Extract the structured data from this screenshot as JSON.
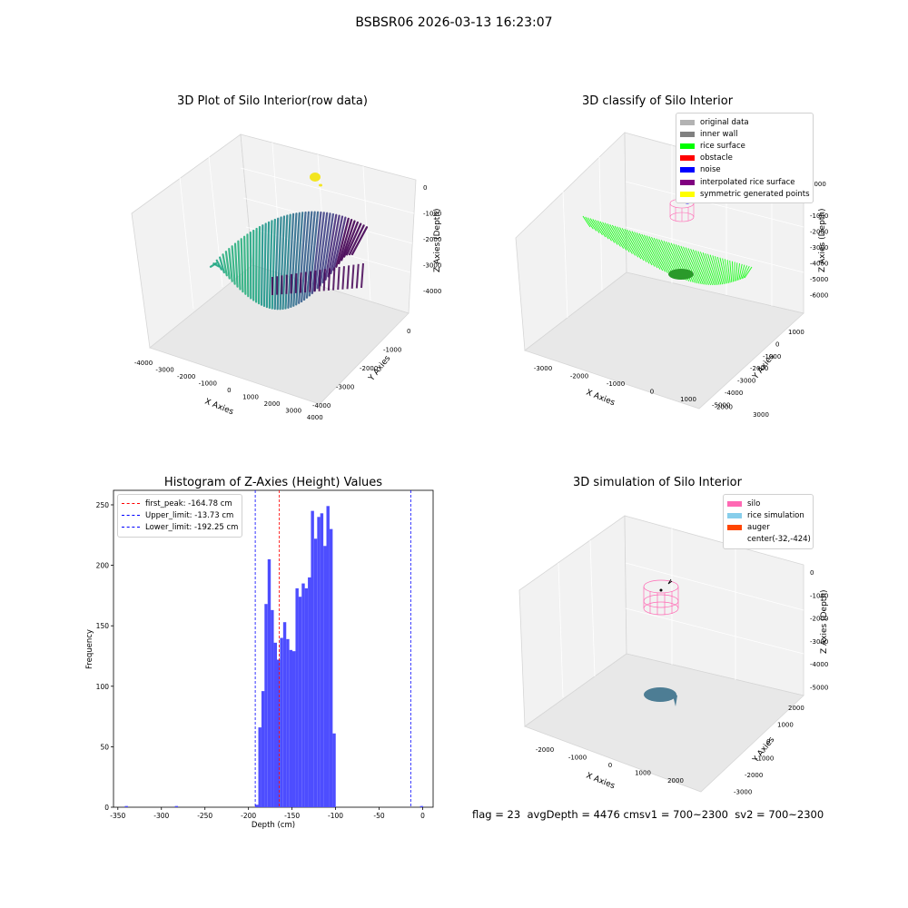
{
  "suptitle": "BSBSR06 2026-03-13 16:23:07",
  "colors": {
    "original": "#b3b3b3",
    "inner_wall": "#808080",
    "rice_surface": "#00ff00",
    "obstacle": "#ff0000",
    "noise": "#0000ff",
    "interpolated": "#800080",
    "symmetric": "#ffff00",
    "silo": "#ff69b4",
    "rice_sim": "#87ceeb",
    "auger": "#ff4500",
    "hist_bar": "#4d4dff"
  },
  "panel1": {
    "title": "3D Plot of Silo Interior(row data)",
    "xlabel": "X Axies",
    "ylabel": "Y Axies",
    "zlabel": "Z Axies (Depth)",
    "xticks": [
      "-4000",
      "-3000",
      "-2000",
      "-1000",
      "0",
      "1000",
      "2000",
      "3000",
      "4000"
    ],
    "yticks": [
      "0",
      "-1000",
      "-2000",
      "-3000",
      "-4000"
    ],
    "zticks": [
      "0",
      "-1000",
      "-2000",
      "-3000",
      "-4000"
    ]
  },
  "panel2": {
    "title": "3D classify of Silo Interior",
    "xlabel": "X Axies",
    "ylabel": "Y Axies",
    "zlabel": "Z Axies (Depth)",
    "xticks": [
      "-3000",
      "-2000",
      "-1000",
      "0",
      "1000",
      "2000",
      "3000"
    ],
    "yticks": [
      "1000",
      "0",
      "-1000",
      "-2000",
      "-3000",
      "-4000",
      "-5000"
    ],
    "zticks": [
      "1000",
      "0",
      "-1000",
      "-2000",
      "-3000",
      "-4000",
      "-5000",
      "-6000"
    ],
    "legend": [
      {
        "label": "original data",
        "color": "#b3b3b3"
      },
      {
        "label": "inner wall",
        "color": "#808080"
      },
      {
        "label": "rice surface",
        "color": "#00ff00"
      },
      {
        "label": "obstacle",
        "color": "#ff0000"
      },
      {
        "label": "noise",
        "color": "#0000ff"
      },
      {
        "label": "interpolated rice surface",
        "color": "#800080"
      },
      {
        "label": "symmetric generated points",
        "color": "#ffff00"
      }
    ]
  },
  "panel3": {
    "title": "3D simulation of Silo Interior",
    "xlabel": "X Axies",
    "ylabel": "Y Axies",
    "zlabel": "Z Axies (Depth)",
    "xticks": [
      "-2000",
      "-1000",
      "0",
      "1000",
      "2000"
    ],
    "yticks": [
      "2000",
      "1000",
      "0",
      "-1000",
      "-2000",
      "-3000"
    ],
    "zticks": [
      "0",
      "-1000",
      "-2000",
      "-3000",
      "-4000",
      "-5000"
    ],
    "legend": [
      {
        "label": "silo",
        "color": "#ff69b4"
      },
      {
        "label": "rice simulation",
        "color": "#87ceeb"
      },
      {
        "label": "auger",
        "color": "#ff4500"
      },
      {
        "label": "center(-32,-424)",
        "color": ""
      }
    ]
  },
  "status_text": "flag = 23  avgDepth = 4476 cmsv1 = 700~2300  sv2 = 700~2300",
  "chart_data": {
    "type": "bar",
    "title": "Histogram of Z-Axies (Height) Values",
    "xlabel": "Depth (cm)",
    "ylabel": "Frequency",
    "xlim": [
      -355,
      12
    ],
    "ylim": [
      0,
      262
    ],
    "xticks": [
      -350,
      -300,
      -250,
      -200,
      -150,
      -100,
      -50,
      0
    ],
    "yticks": [
      0,
      50,
      100,
      150,
      200,
      250
    ],
    "bin_width": 3.56,
    "bins": [
      {
        "x": -342.0,
        "v": 1
      },
      {
        "x": -284.5,
        "v": 1
      },
      {
        "x": -192.25,
        "v": 2
      },
      {
        "x": -188.7,
        "v": 66
      },
      {
        "x": -185.1,
        "v": 96
      },
      {
        "x": -181.6,
        "v": 168
      },
      {
        "x": -178.0,
        "v": 205
      },
      {
        "x": -174.5,
        "v": 163
      },
      {
        "x": -170.9,
        "v": 136
      },
      {
        "x": -167.4,
        "v": 122
      },
      {
        "x": -163.8,
        "v": 140
      },
      {
        "x": -160.2,
        "v": 153
      },
      {
        "x": -156.7,
        "v": 139
      },
      {
        "x": -153.1,
        "v": 130
      },
      {
        "x": -149.6,
        "v": 129
      },
      {
        "x": -146.0,
        "v": 181
      },
      {
        "x": -142.5,
        "v": 174
      },
      {
        "x": -138.9,
        "v": 185
      },
      {
        "x": -135.4,
        "v": 181
      },
      {
        "x": -131.8,
        "v": 190
      },
      {
        "x": -128.3,
        "v": 245
      },
      {
        "x": -124.7,
        "v": 222
      },
      {
        "x": -121.1,
        "v": 240
      },
      {
        "x": -117.6,
        "v": 243
      },
      {
        "x": -114.0,
        "v": 216
      },
      {
        "x": -110.5,
        "v": 249
      },
      {
        "x": -106.9,
        "v": 230
      },
      {
        "x": -103.4,
        "v": 61
      },
      {
        "x": -3.0,
        "v": 1
      }
    ],
    "vlines": [
      {
        "x": -164.78,
        "label": "first_peak: -164.78 cm",
        "color": "#ff0000"
      },
      {
        "x": -13.73,
        "label": "Upper_limit: -13.73 cm",
        "color": "#0000ff"
      },
      {
        "x": -192.25,
        "label": "Lower_limit: -192.25 cm",
        "color": "#0000ff"
      }
    ]
  }
}
